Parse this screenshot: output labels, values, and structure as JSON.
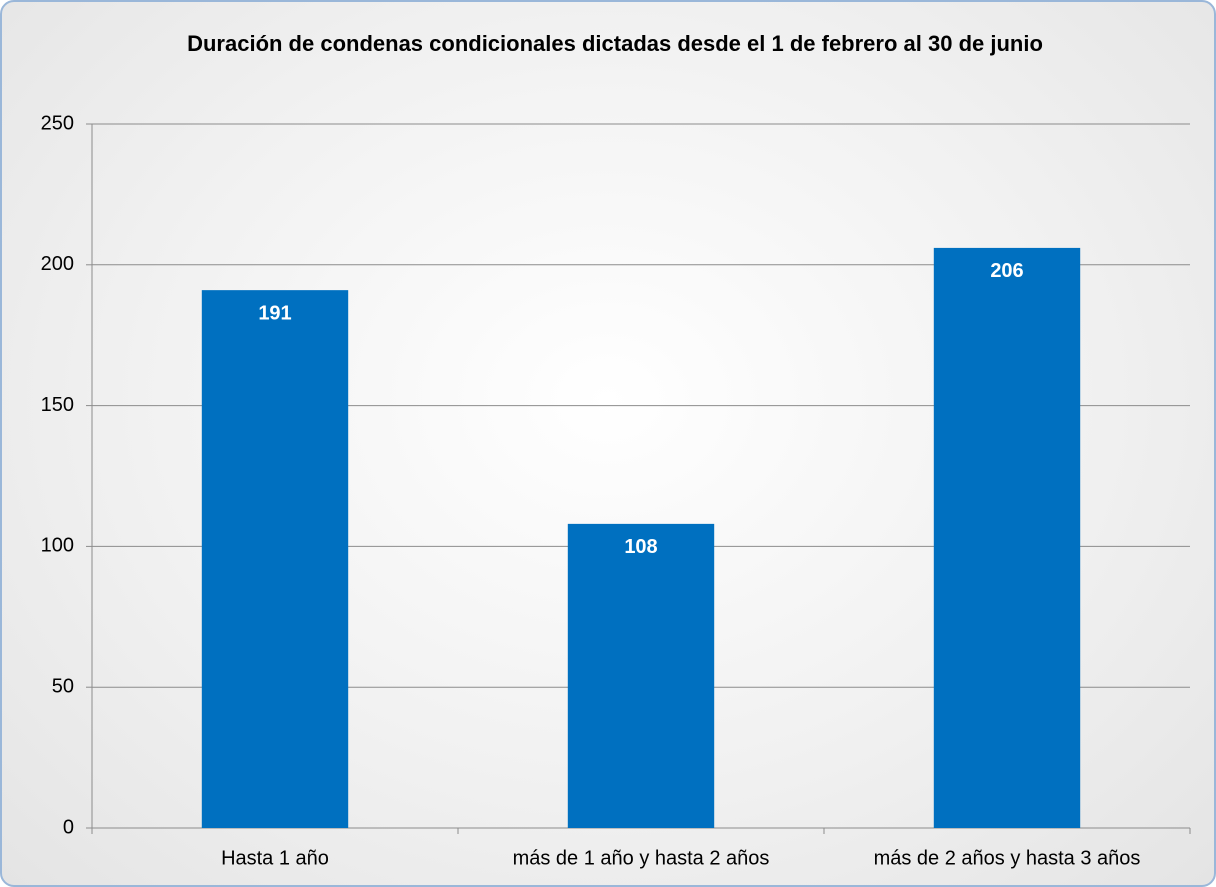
{
  "chart_data": {
    "type": "bar",
    "title": "Duración de condenas condicionales dictadas desde el 1 de febrero al 30 de junio",
    "categories": [
      "Hasta 1 año",
      "más de 1 año y hasta 2 años",
      "más de 2 años y hasta 3 años"
    ],
    "values": [
      191,
      108,
      206
    ],
    "color": "#0070c0",
    "ylim": [
      0,
      250
    ],
    "yticks": [
      0,
      50,
      100,
      150,
      200,
      250
    ],
    "grid": true
  }
}
